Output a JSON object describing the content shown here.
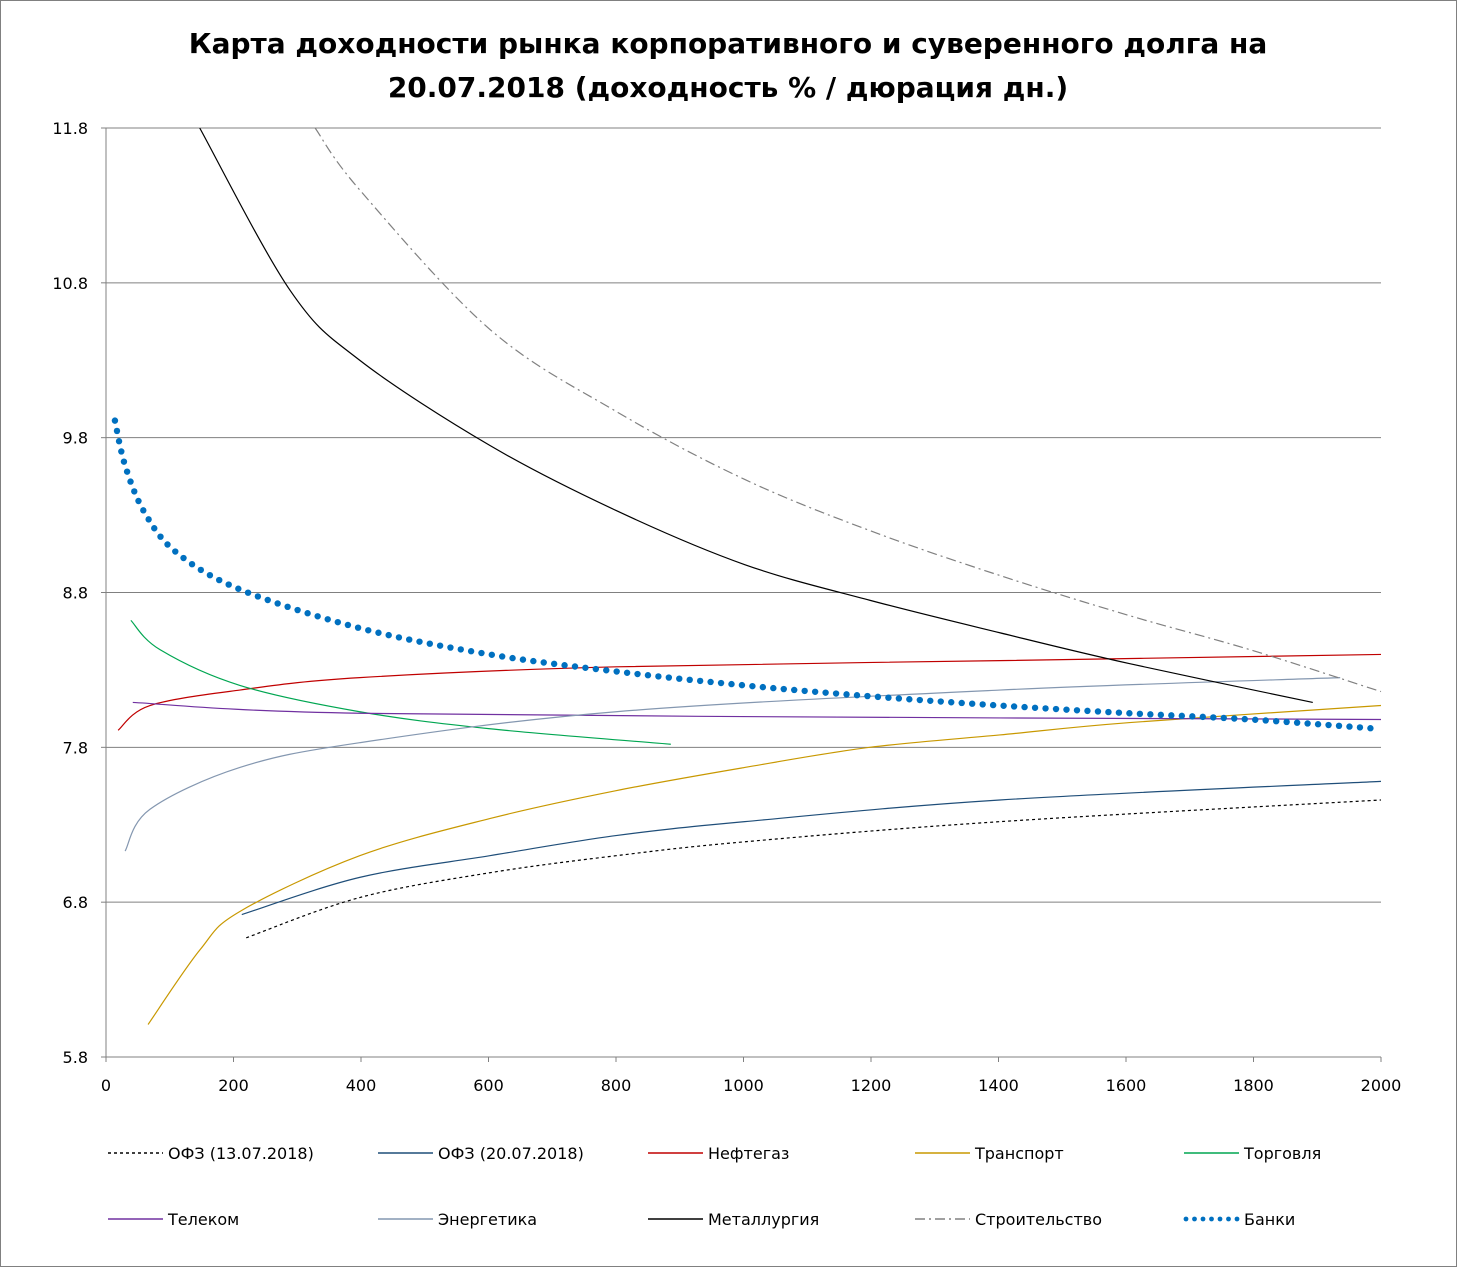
{
  "chart_data": {
    "type": "line",
    "title_lines": [
      "Карта доходности рынка корпоративного и суверенного долга на",
      "20.07.2018 (доходность % / дюрация дн.)"
    ],
    "xlabel": "",
    "ylabel": "",
    "xlim": [
      0,
      2000
    ],
    "ylim": [
      5.8,
      11.8
    ],
    "xticks": [
      "0",
      "200",
      "400",
      "600",
      "800",
      "1000",
      "1200",
      "1400",
      "1600",
      "1800",
      "2000"
    ],
    "yticks": [
      "5.8",
      "6.8",
      "7.8",
      "8.8",
      "9.8",
      "10.8",
      "11.8"
    ],
    "grid": "horizontal",
    "legend_position": "bottom",
    "series": [
      {
        "name": "ОФЗ (13.07.2018)",
        "color": "#000000",
        "style": "dashed",
        "x": [
          220,
          398,
          602,
          800,
          1002,
          1402,
          2000
        ],
        "y": [
          6.57,
          6.83,
          6.99,
          7.1,
          7.19,
          7.32,
          7.46
        ]
      },
      {
        "name": "ОФЗ (20.07.2018)",
        "color": "#1f4e79",
        "style": "solid",
        "x": [
          213,
          398,
          602,
          800,
          1002,
          1402,
          2000
        ],
        "y": [
          6.72,
          6.96,
          7.1,
          7.23,
          7.32,
          7.46,
          7.58
        ]
      },
      {
        "name": "Нефтегаз",
        "color": "#c00000",
        "style": "solid",
        "x": [
          19,
          69,
          210,
          398,
          800,
          1402,
          2000
        ],
        "y": [
          7.91,
          8.07,
          8.17,
          8.25,
          8.32,
          8.36,
          8.4
        ]
      },
      {
        "name": "Транспорт",
        "color": "#c89800",
        "style": "solid",
        "x": [
          66,
          147,
          210,
          398,
          602,
          800,
          1002,
          1198,
          1402,
          1606,
          2000
        ],
        "y": [
          6.01,
          6.49,
          6.74,
          7.1,
          7.34,
          7.52,
          7.67,
          7.8,
          7.88,
          7.96,
          8.07
        ]
      },
      {
        "name": "Торговля",
        "color": "#00a651",
        "style": "solid",
        "x": [
          39,
          85,
          210,
          398,
          602,
          886
        ],
        "y": [
          8.62,
          8.43,
          8.2,
          8.03,
          7.92,
          7.82
        ]
      },
      {
        "name": "Телеком",
        "color": "#7030a0",
        "style": "solid",
        "x": [
          42,
          398,
          1402,
          2000
        ],
        "y": [
          8.09,
          8.02,
          7.99,
          7.98
        ]
      },
      {
        "name": "Энергетика",
        "color": "#8497b0",
        "style": "solid",
        "x": [
          30,
          69,
          210,
          398,
          800,
          1402,
          1936
        ],
        "y": [
          7.13,
          7.4,
          7.67,
          7.83,
          8.03,
          8.17,
          8.25
        ]
      },
      {
        "name": "Металлургия",
        "color": "#000000",
        "style": "solid",
        "x": [
          147,
          289,
          398,
          602,
          800,
          1002,
          1198,
          1402,
          1606,
          1893
        ],
        "y": [
          11.8,
          10.75,
          10.3,
          9.75,
          9.33,
          8.98,
          8.75,
          8.54,
          8.34,
          8.09
        ]
      },
      {
        "name": "Строительство",
        "color": "#808080",
        "style": "dashdot",
        "x": [
          328,
          398,
          602,
          800,
          1002,
          1198,
          1402,
          1606,
          1795,
          2000
        ],
        "y": [
          11.8,
          11.4,
          10.5,
          9.97,
          9.53,
          9.2,
          8.91,
          8.65,
          8.43,
          8.16
        ]
      },
      {
        "name": "Банки",
        "color": "#0070c0",
        "style": "dots",
        "x": [
          14,
          30,
          60,
          110,
          210,
          398,
          602,
          800,
          1002,
          1198,
          1402,
          1606,
          1795,
          1995
        ],
        "y": [
          9.91,
          9.62,
          9.32,
          9.06,
          8.82,
          8.57,
          8.4,
          8.29,
          8.2,
          8.13,
          8.07,
          8.02,
          7.98,
          7.92
        ]
      }
    ]
  }
}
